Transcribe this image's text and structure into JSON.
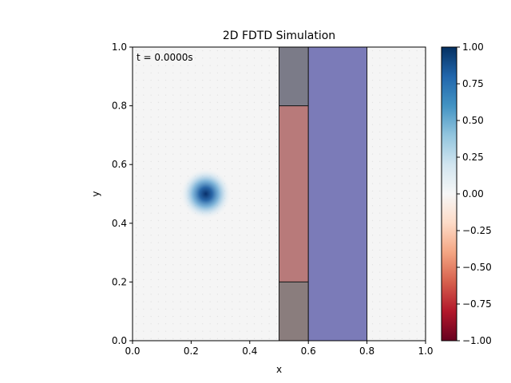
{
  "chart_data": {
    "type": "heatmap",
    "title": "2D FDTD Simulation",
    "xlabel": "x",
    "ylabel": "y",
    "xlim": [
      0.0,
      1.0
    ],
    "ylim": [
      0.0,
      1.0
    ],
    "xticks": [
      "0.0",
      "0.2",
      "0.4",
      "0.6",
      "0.8",
      "1.0"
    ],
    "yticks": [
      "0.0",
      "0.2",
      "0.4",
      "0.6",
      "0.8",
      "1.0"
    ],
    "annotation": "t = 0.0000s",
    "colormap": "RdBu",
    "colorbar": {
      "range": [
        -1.0,
        1.0
      ],
      "ticks": [
        "1.00",
        "0.75",
        "0.50",
        "0.25",
        "0.00",
        "−0.25",
        "−0.50",
        "−0.75",
        "−1.00"
      ],
      "tick_values": [
        1.0,
        0.75,
        0.5,
        0.25,
        0.0,
        -0.25,
        -0.5,
        -0.75,
        -1.0
      ],
      "colors": [
        "#67001f",
        "#b2182b",
        "#d6604d",
        "#f4a582",
        "#fddbc7",
        "#f7f7f7",
        "#d1e5f0",
        "#92c5de",
        "#4393c3",
        "#2166ac",
        "#053061"
      ]
    },
    "source": {
      "center": [
        0.25,
        0.5
      ],
      "peak_value": 1.0,
      "width_sigma": 0.04,
      "peak_color": "#08306b"
    },
    "regions": [
      {
        "name": "upper block",
        "x": [
          0.5,
          0.6
        ],
        "y": [
          0.8,
          1.0
        ],
        "color": "#7b7b88"
      },
      {
        "name": "middle block",
        "x": [
          0.5,
          0.6
        ],
        "y": [
          0.2,
          0.8
        ],
        "color": "#b87a7a"
      },
      {
        "name": "lower block",
        "x": [
          0.5,
          0.6
        ],
        "y": [
          0.0,
          0.2
        ],
        "color": "#8a7d7d"
      },
      {
        "name": "wide slab",
        "x": [
          0.6,
          0.8
        ],
        "y": [
          0.0,
          1.0
        ],
        "color": "#7b7bb8"
      }
    ],
    "background_color": "#f5f5f5"
  }
}
